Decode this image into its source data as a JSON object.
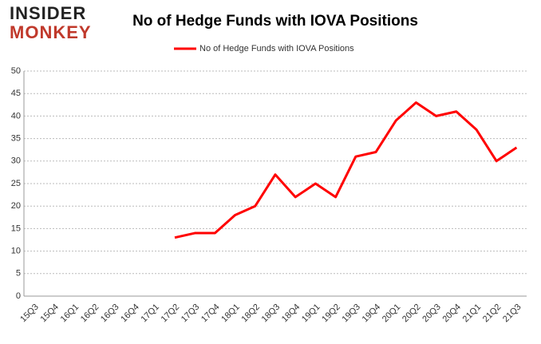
{
  "logo": {
    "line1": "INSIDER",
    "line2": "MONKEY"
  },
  "chart_data": {
    "type": "line",
    "title": "No of Hedge Funds with IOVA Positions",
    "categories": [
      "15Q3",
      "15Q4",
      "16Q1",
      "16Q2",
      "16Q3",
      "16Q4",
      "17Q1",
      "17Q2",
      "17Q3",
      "17Q4",
      "18Q1",
      "18Q2",
      "18Q3",
      "18Q4",
      "19Q1",
      "19Q2",
      "19Q3",
      "19Q4",
      "20Q1",
      "20Q2",
      "20Q3",
      "20Q4",
      "21Q1",
      "21Q2",
      "21Q3"
    ],
    "series": [
      {
        "name": "No of Hedge Funds with IOVA Positions",
        "color": "#ff0000",
        "values": [
          null,
          null,
          null,
          null,
          null,
          null,
          null,
          13,
          14,
          14,
          18,
          20,
          27,
          22,
          25,
          22,
          31,
          32,
          39,
          43,
          40,
          41,
          37,
          30,
          33
        ]
      }
    ],
    "ylim": [
      0,
      50
    ],
    "yticks": [
      0,
      5,
      10,
      15,
      20,
      25,
      30,
      35,
      40,
      45,
      50
    ],
    "grid": true,
    "legend": "top"
  }
}
